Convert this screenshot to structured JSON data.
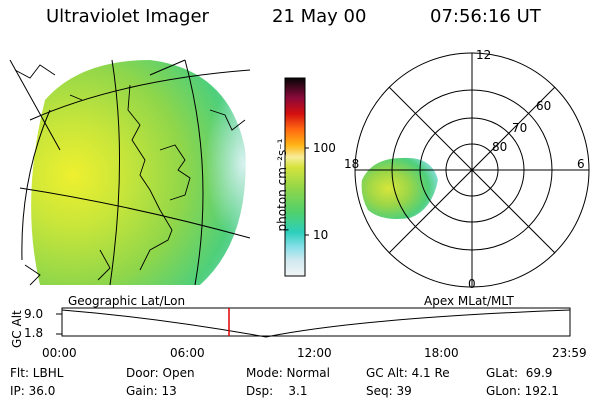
{
  "header": {
    "instrument": "Ultraviolet Imager",
    "date": "21 May 00",
    "time": "07:56:16 UT"
  },
  "colorbar": {
    "unit_label": "photon cm⁻²s⁻¹",
    "tick_100": "100",
    "tick_10": "10",
    "stops": [
      "#f2f4f6",
      "#cfe9ef",
      "#a8e2ec",
      "#63d8e0",
      "#2dcfbd",
      "#4fd06c",
      "#8fd64a",
      "#c7e33c",
      "#f2ea35",
      "#ffd21e",
      "#ff9b10",
      "#f04a10",
      "#d40f10",
      "#8a0a3a",
      "#3a0a3e",
      "#050505"
    ]
  },
  "left_panel": {
    "label": "Geographic Lat/Lon"
  },
  "right_panel": {
    "label": "Apex MLat/MLT",
    "mlt_12": "12",
    "mlt_18": "18",
    "mlt_6": "6",
    "mlt_0": "0",
    "lat_60": "60",
    "lat_70": "70",
    "lat_80": "80"
  },
  "altitude_plot": {
    "ylabel": "GC Alt",
    "ytick_top": "9.0",
    "ytick_bottom": "1.8",
    "xticks": [
      "00:00",
      "06:00",
      "12:00",
      "18:00",
      "23:59"
    ],
    "marker_color": "#e00000"
  },
  "info": {
    "flt": "Flt: LBHL",
    "ip": "IP: 36.0",
    "door": "Door: Open",
    "gain": "Gain: 13",
    "mode": "Mode: Normal",
    "dsp": "Dsp:    3.1",
    "gc_alt": "GC Alt: 4.1 Re",
    "seq": "Seq: 39",
    "glat": "GLat:  69.9",
    "glon": "GLon: 192.1"
  }
}
